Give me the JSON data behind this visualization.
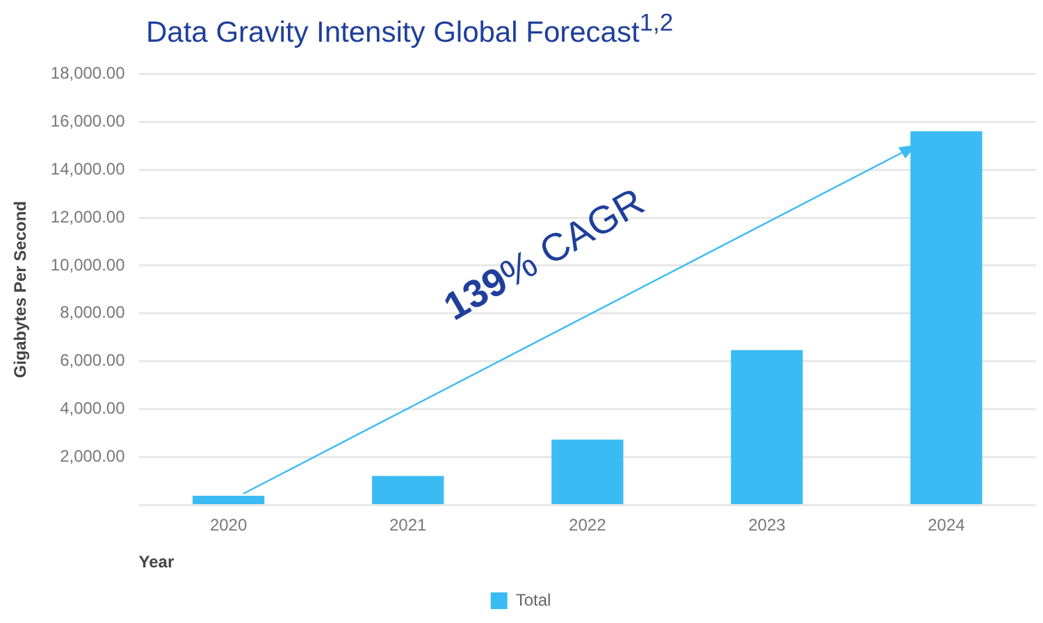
{
  "chart_data": {
    "type": "bar",
    "title": "Data Gravity Intensity Global Forecast$^{1,2}$",
    "xlabel": "Year",
    "ylabel": "Gigabytes Per Second",
    "categories": [
      "2020",
      "2021",
      "2022",
      "2023",
      "2024"
    ],
    "series": [
      {
        "name": "Total",
        "color": "#3bbbf3",
        "values": [
          390,
          1220,
          2730,
          6470,
          15610
        ]
      }
    ],
    "ylim": [
      0,
      18000
    ],
    "yticks": [
      {
        "value": 0,
        "label": null
      },
      {
        "value": 2000,
        "label": "2,000.00"
      },
      {
        "value": 4000,
        "label": "4,000.00"
      },
      {
        "value": 6000,
        "label": "6,000.00"
      },
      {
        "value": 8000,
        "label": "8,000.00"
      },
      {
        "value": 10000,
        "label": "10,000.00"
      },
      {
        "value": 12000,
        "label": "12,000.00"
      },
      {
        "value": 14000,
        "label": "14,000.00"
      },
      {
        "value": 16000,
        "label": "16,000.00"
      },
      {
        "value": 18000,
        "label": "18,000.00"
      }
    ],
    "grid": "y",
    "legend": "bottom",
    "annotations": [
      "139% CAGR"
    ]
  }
}
